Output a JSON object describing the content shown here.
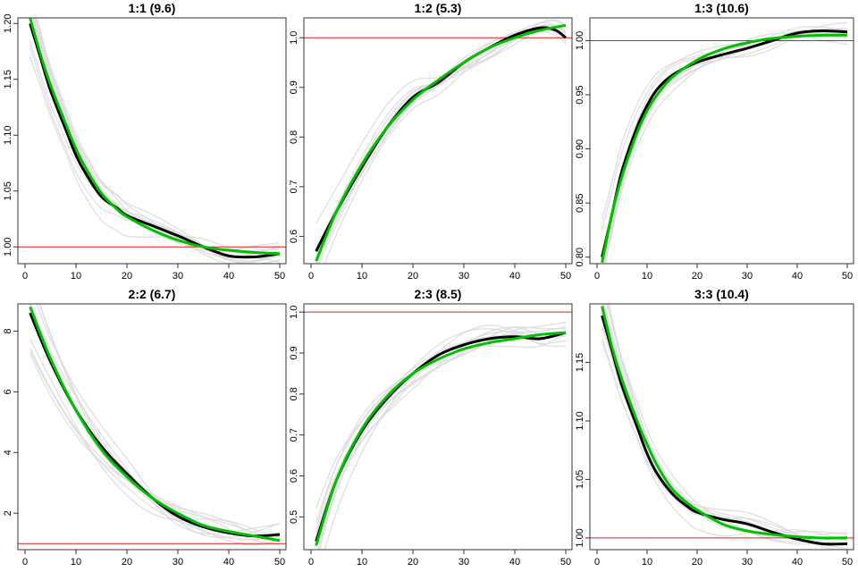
{
  "chart_data": [
    {
      "type": "line",
      "title": "1:1 (9.6)",
      "xlim": [
        0,
        50
      ],
      "ylim": [
        0.985,
        1.205
      ],
      "x_ticks": [
        "0",
        "10",
        "20",
        "30",
        "40",
        "50"
      ],
      "y_ticks": [
        "1.00",
        "1.05",
        "1.10",
        "1.15",
        "1.20"
      ],
      "reference_line": 1.0,
      "series": [
        {
          "role": "mean",
          "color": "#000000",
          "x": [
            1,
            3,
            5,
            8,
            10,
            12,
            15,
            18,
            20,
            25,
            30,
            35,
            40,
            45,
            50
          ],
          "values": [
            1.2,
            1.17,
            1.14,
            1.105,
            1.082,
            1.065,
            1.045,
            1.035,
            1.028,
            1.019,
            1.01,
            1.0,
            0.992,
            0.991,
            0.994
          ]
        },
        {
          "role": "fit",
          "color": "#00c000",
          "x": [
            1,
            3,
            5,
            8,
            10,
            12,
            15,
            18,
            20,
            25,
            30,
            35,
            40,
            45,
            50
          ],
          "values": [
            1.205,
            1.173,
            1.145,
            1.11,
            1.088,
            1.07,
            1.048,
            1.034,
            1.027,
            1.015,
            1.006,
            1.0,
            0.997,
            0.995,
            0.994
          ]
        }
      ]
    },
    {
      "type": "line",
      "title": "1:2 (5.3)",
      "xlim": [
        0,
        50
      ],
      "ylim": [
        0.545,
        1.04
      ],
      "x_ticks": [
        "0",
        "10",
        "20",
        "30",
        "40",
        "50"
      ],
      "y_ticks": [
        "0.6",
        "0.7",
        "0.8",
        "0.9",
        "1.0"
      ],
      "reference_line": 1.0,
      "series": [
        {
          "role": "mean",
          "color": "#000000",
          "x": [
            1,
            5,
            10,
            15,
            20,
            25,
            30,
            35,
            40,
            45,
            48,
            50
          ],
          "values": [
            0.57,
            0.65,
            0.74,
            0.82,
            0.88,
            0.91,
            0.95,
            0.98,
            1.005,
            1.02,
            1.015,
            1.0
          ]
        },
        {
          "role": "fit",
          "color": "#00c000",
          "x": [
            1,
            5,
            10,
            15,
            20,
            25,
            30,
            35,
            40,
            45,
            50
          ],
          "values": [
            0.55,
            0.65,
            0.745,
            0.82,
            0.875,
            0.915,
            0.95,
            0.98,
            1.0,
            1.015,
            1.025
          ]
        }
      ]
    },
    {
      "type": "line",
      "title": "1:3 (10.6)",
      "xlim": [
        0,
        50
      ],
      "ylim": [
        0.794,
        1.021
      ],
      "x_ticks": [
        "0",
        "10",
        "20",
        "30",
        "40",
        "50"
      ],
      "y_ticks": [
        "0.80",
        "0.85",
        "0.90",
        "0.95",
        "1.00"
      ],
      "reference_line": 1.0,
      "series": [
        {
          "role": "mean",
          "color": "#000000",
          "x": [
            1,
            3,
            5,
            8,
            10,
            12,
            15,
            20,
            25,
            30,
            35,
            40,
            45,
            50
          ],
          "values": [
            0.8,
            0.84,
            0.88,
            0.92,
            0.94,
            0.955,
            0.968,
            0.98,
            0.987,
            0.993,
            1.0,
            1.007,
            1.009,
            1.008
          ]
        },
        {
          "role": "fit",
          "color": "#00c000",
          "x": [
            1,
            3,
            5,
            8,
            10,
            12,
            15,
            20,
            25,
            30,
            35,
            40,
            45,
            50
          ],
          "values": [
            0.795,
            0.84,
            0.875,
            0.915,
            0.935,
            0.95,
            0.966,
            0.982,
            0.992,
            0.998,
            1.002,
            1.004,
            1.005,
            1.005
          ]
        }
      ]
    },
    {
      "type": "line",
      "title": "2:2 (6.7)",
      "xlim": [
        0,
        50
      ],
      "ylim": [
        0.8,
        8.9
      ],
      "x_ticks": [
        "0",
        "10",
        "20",
        "30",
        "40",
        "50"
      ],
      "y_ticks": [
        "2",
        "4",
        "6",
        "8"
      ],
      "reference_line": 1.0,
      "series": [
        {
          "role": "mean",
          "color": "#000000",
          "x": [
            1,
            5,
            10,
            15,
            20,
            25,
            30,
            35,
            40,
            45,
            50
          ],
          "values": [
            8.6,
            7.0,
            5.4,
            4.2,
            3.3,
            2.5,
            1.9,
            1.55,
            1.35,
            1.25,
            1.3
          ]
        },
        {
          "role": "fit",
          "color": "#00c000",
          "x": [
            1,
            5,
            10,
            15,
            20,
            25,
            30,
            35,
            40,
            45,
            50
          ],
          "values": [
            8.8,
            7.1,
            5.4,
            4.1,
            3.2,
            2.5,
            2.0,
            1.6,
            1.4,
            1.25,
            1.1
          ]
        }
      ]
    },
    {
      "type": "line",
      "title": "2:3 (8.5)",
      "xlim": [
        0,
        50
      ],
      "ylim": [
        0.42,
        1.02
      ],
      "x_ticks": [
        "0",
        "10",
        "20",
        "30",
        "40",
        "50"
      ],
      "y_ticks": [
        "0.5",
        "0.6",
        "0.7",
        "0.8",
        "0.9",
        "1.0"
      ],
      "reference_line": 1.0,
      "series": [
        {
          "role": "mean",
          "color": "#000000",
          "x": [
            1,
            5,
            10,
            15,
            20,
            25,
            30,
            35,
            40,
            45,
            50
          ],
          "values": [
            0.44,
            0.59,
            0.71,
            0.79,
            0.85,
            0.895,
            0.92,
            0.935,
            0.94,
            0.935,
            0.95
          ]
        },
        {
          "role": "fit",
          "color": "#00c000",
          "x": [
            1,
            5,
            10,
            15,
            20,
            25,
            30,
            35,
            40,
            45,
            50
          ],
          "values": [
            0.43,
            0.59,
            0.715,
            0.795,
            0.85,
            0.885,
            0.91,
            0.925,
            0.935,
            0.945,
            0.95
          ]
        }
      ]
    },
    {
      "type": "line",
      "title": "3:3 (10.4)",
      "xlim": [
        0,
        50
      ],
      "ylim": [
        0.99,
        1.2
      ],
      "x_ticks": [
        "0",
        "10",
        "20",
        "30",
        "40",
        "50"
      ],
      "y_ticks": [
        "1.00",
        "1.05",
        "1.10",
        "1.15"
      ],
      "reference_line": 1.0,
      "series": [
        {
          "role": "mean",
          "color": "#000000",
          "x": [
            1,
            3,
            5,
            8,
            10,
            12,
            15,
            18,
            20,
            25,
            30,
            35,
            40,
            45,
            50
          ],
          "values": [
            1.19,
            1.16,
            1.13,
            1.095,
            1.072,
            1.055,
            1.038,
            1.027,
            1.022,
            1.016,
            1.012,
            1.005,
            0.999,
            0.995,
            0.995
          ]
        },
        {
          "role": "fit",
          "color": "#00c000",
          "x": [
            1,
            3,
            5,
            8,
            10,
            12,
            15,
            18,
            20,
            25,
            30,
            35,
            40,
            45,
            50
          ],
          "values": [
            1.198,
            1.163,
            1.135,
            1.1,
            1.08,
            1.062,
            1.042,
            1.03,
            1.024,
            1.012,
            1.006,
            1.003,
            1.001,
            1.0,
            1.0
          ]
        }
      ]
    }
  ]
}
